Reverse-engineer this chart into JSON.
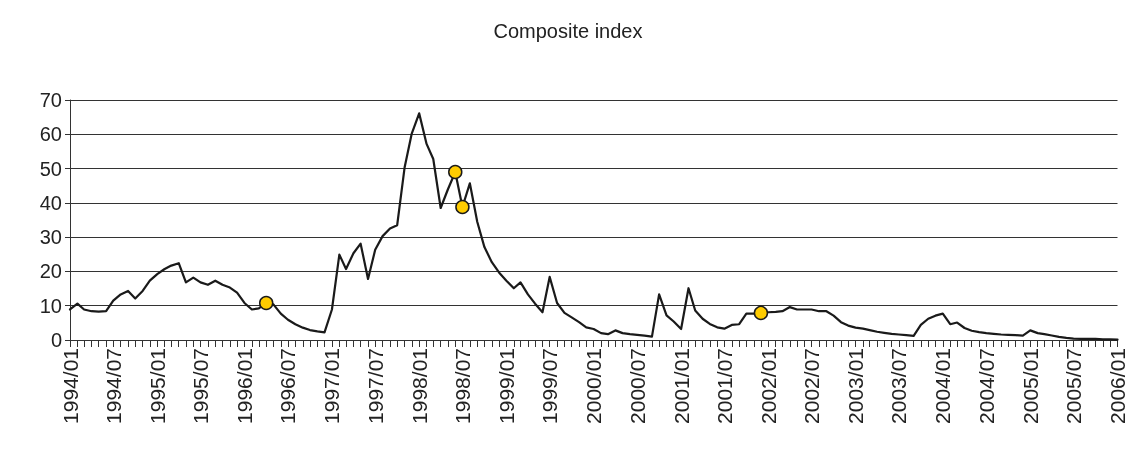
{
  "chart_data": {
    "type": "line",
    "title": "Composite index",
    "xlim": [
      "1994-01",
      "2006-01"
    ],
    "ylim": [
      0,
      70
    ],
    "yticks": [
      0,
      10,
      20,
      30,
      40,
      50,
      60,
      70
    ],
    "grid": "y",
    "marker": "none",
    "line_style": "solid",
    "xticks": [
      {
        "value": "1994-01",
        "label": "1994/01"
      },
      {
        "value": "1994-02",
        "label": null
      },
      {
        "value": "1994-03",
        "label": null
      },
      {
        "value": "1994-04",
        "label": null
      },
      {
        "value": "1994-05",
        "label": null
      },
      {
        "value": "1994-06",
        "label": null
      },
      {
        "value": "1994-07",
        "label": "1994/07"
      },
      {
        "value": "1994-08",
        "label": null
      },
      {
        "value": "1994-09",
        "label": null
      },
      {
        "value": "1994-10",
        "label": null
      },
      {
        "value": "1994-11",
        "label": null
      },
      {
        "value": "1994-12",
        "label": null
      },
      {
        "value": "1995-01",
        "label": "1995/01"
      },
      {
        "value": "1995-02",
        "label": null
      },
      {
        "value": "1995-03",
        "label": null
      },
      {
        "value": "1995-04",
        "label": null
      },
      {
        "value": "1995-05",
        "label": null
      },
      {
        "value": "1995-06",
        "label": null
      },
      {
        "value": "1995-07",
        "label": "1995/07"
      },
      {
        "value": "1995-08",
        "label": null
      },
      {
        "value": "1995-09",
        "label": null
      },
      {
        "value": "1995-10",
        "label": null
      },
      {
        "value": "1995-11",
        "label": null
      },
      {
        "value": "1995-12",
        "label": null
      },
      {
        "value": "1996-01",
        "label": "1996/01"
      },
      {
        "value": "1996-02",
        "label": null
      },
      {
        "value": "1996-03",
        "label": null
      },
      {
        "value": "1996-04",
        "label": null
      },
      {
        "value": "1996-05",
        "label": null
      },
      {
        "value": "1996-06",
        "label": null
      },
      {
        "value": "1996-07",
        "label": "1996/07"
      },
      {
        "value": "1996-08",
        "label": null
      },
      {
        "value": "1996-09",
        "label": null
      },
      {
        "value": "1996-10",
        "label": null
      },
      {
        "value": "1996-11",
        "label": null
      },
      {
        "value": "1996-12",
        "label": null
      },
      {
        "value": "1997-01",
        "label": "1997/01"
      },
      {
        "value": "1997-02",
        "label": null
      },
      {
        "value": "1997-03",
        "label": null
      },
      {
        "value": "1997-04",
        "label": null
      },
      {
        "value": "1997-05",
        "label": null
      },
      {
        "value": "1997-06",
        "label": null
      },
      {
        "value": "1997-07",
        "label": "1997/07"
      },
      {
        "value": "1997-08",
        "label": null
      },
      {
        "value": "1997-09",
        "label": null
      },
      {
        "value": "1997-10",
        "label": null
      },
      {
        "value": "1997-11",
        "label": null
      },
      {
        "value": "1997-12",
        "label": null
      },
      {
        "value": "1998-01",
        "label": "1998/01"
      },
      {
        "value": "1998-02",
        "label": null
      },
      {
        "value": "1998-03",
        "label": null
      },
      {
        "value": "1998-04",
        "label": null
      },
      {
        "value": "1998-05",
        "label": null
      },
      {
        "value": "1998-06",
        "label": null
      },
      {
        "value": "1998-07",
        "label": "1998/07"
      },
      {
        "value": "1998-08",
        "label": null
      },
      {
        "value": "1998-09",
        "label": null
      },
      {
        "value": "1998-10",
        "label": null
      },
      {
        "value": "1998-11",
        "label": null
      },
      {
        "value": "1998-12",
        "label": null
      },
      {
        "value": "1999-01",
        "label": "1999/01"
      },
      {
        "value": "1999-02",
        "label": null
      },
      {
        "value": "1999-03",
        "label": null
      },
      {
        "value": "1999-04",
        "label": null
      },
      {
        "value": "1999-05",
        "label": null
      },
      {
        "value": "1999-06",
        "label": null
      },
      {
        "value": "1999-07",
        "label": "1999/07"
      },
      {
        "value": "1999-08",
        "label": null
      },
      {
        "value": "1999-09",
        "label": null
      },
      {
        "value": "1999-10",
        "label": null
      },
      {
        "value": "1999-11",
        "label": null
      },
      {
        "value": "1999-12",
        "label": null
      },
      {
        "value": "2000-01",
        "label": "2000/01"
      },
      {
        "value": "2000-02",
        "label": null
      },
      {
        "value": "2000-03",
        "label": null
      },
      {
        "value": "2000-04",
        "label": null
      },
      {
        "value": "2000-05",
        "label": null
      },
      {
        "value": "2000-06",
        "label": null
      },
      {
        "value": "2000-07",
        "label": "2000/07"
      },
      {
        "value": "2000-08",
        "label": null
      },
      {
        "value": "2000-09",
        "label": null
      },
      {
        "value": "2000-10",
        "label": null
      },
      {
        "value": "2000-11",
        "label": null
      },
      {
        "value": "2000-12",
        "label": null
      },
      {
        "value": "2001-01",
        "label": "2001/01"
      },
      {
        "value": "2001-02",
        "label": null
      },
      {
        "value": "2001-03",
        "label": null
      },
      {
        "value": "2001-04",
        "label": null
      },
      {
        "value": "2001-05",
        "label": null
      },
      {
        "value": "2001-06",
        "label": null
      },
      {
        "value": "2001-07",
        "label": "2001/07"
      },
      {
        "value": "2001-08",
        "label": null
      },
      {
        "value": "2001-09",
        "label": null
      },
      {
        "value": "2001-10",
        "label": null
      },
      {
        "value": "2001-11",
        "label": null
      },
      {
        "value": "2001-12",
        "label": null
      },
      {
        "value": "2002-01",
        "label": "2002/01"
      },
      {
        "value": "2002-02",
        "label": null
      },
      {
        "value": "2002-03",
        "label": null
      },
      {
        "value": "2002-04",
        "label": null
      },
      {
        "value": "2002-05",
        "label": null
      },
      {
        "value": "2002-06",
        "label": null
      },
      {
        "value": "2002-07",
        "label": "2002/07"
      },
      {
        "value": "2002-08",
        "label": null
      },
      {
        "value": "2002-09",
        "label": null
      },
      {
        "value": "2002-10",
        "label": null
      },
      {
        "value": "2002-11",
        "label": null
      },
      {
        "value": "2002-12",
        "label": null
      },
      {
        "value": "2003-01",
        "label": "2003/01"
      },
      {
        "value": "2003-02",
        "label": null
      },
      {
        "value": "2003-03",
        "label": null
      },
      {
        "value": "2003-04",
        "label": null
      },
      {
        "value": "2003-05",
        "label": null
      },
      {
        "value": "2003-06",
        "label": null
      },
      {
        "value": "2003-07",
        "label": "2003/07"
      },
      {
        "value": "2003-08",
        "label": null
      },
      {
        "value": "2003-09",
        "label": null
      },
      {
        "value": "2003-10",
        "label": null
      },
      {
        "value": "2003-11",
        "label": null
      },
      {
        "value": "2003-12",
        "label": null
      },
      {
        "value": "2004-01",
        "label": "2004/01"
      },
      {
        "value": "2004-02",
        "label": null
      },
      {
        "value": "2004-03",
        "label": null
      },
      {
        "value": "2004-04",
        "label": null
      },
      {
        "value": "2004-05",
        "label": null
      },
      {
        "value": "2004-06",
        "label": null
      },
      {
        "value": "2004-07",
        "label": "2004/07"
      },
      {
        "value": "2004-08",
        "label": null
      },
      {
        "value": "2004-09",
        "label": null
      },
      {
        "value": "2004-10",
        "label": null
      },
      {
        "value": "2004-11",
        "label": null
      },
      {
        "value": "2004-12",
        "label": null
      },
      {
        "value": "2005-01",
        "label": "2005/01"
      },
      {
        "value": "2005-02",
        "label": null
      },
      {
        "value": "2005-03",
        "label": null
      },
      {
        "value": "2005-04",
        "label": null
      },
      {
        "value": "2005-05",
        "label": null
      },
      {
        "value": "2005-06",
        "label": null
      },
      {
        "value": "2005-07",
        "label": "2005/07"
      },
      {
        "value": "2005-08",
        "label": null
      },
      {
        "value": "2005-09",
        "label": null
      },
      {
        "value": "2005-10",
        "label": null
      },
      {
        "value": "2005-11",
        "label": null
      },
      {
        "value": "2005-12",
        "label": null
      },
      {
        "value": "2006-01",
        "label": "2006/01"
      }
    ],
    "series": [
      {
        "color": "#1a1a1a",
        "x": [
          "1994-01",
          "1994-02",
          "1994-03",
          "1994-04",
          "1994-05",
          "1994-06",
          "1994-07",
          "1994-08",
          "1994-09",
          "1994-10",
          "1994-11",
          "1994-12",
          "1995-01",
          "1995-02",
          "1995-03",
          "1995-04",
          "1995-05",
          "1995-06",
          "1995-07",
          "1995-08",
          "1995-09",
          "1995-10",
          "1995-11",
          "1995-12",
          "1996-01",
          "1996-02",
          "1996-03",
          "1996-04",
          "1996-05",
          "1996-06",
          "1996-07",
          "1996-08",
          "1996-09",
          "1996-10",
          "1996-11",
          "1996-12",
          "1997-01",
          "1997-02",
          "1997-03",
          "1997-04",
          "1997-05",
          "1997-06",
          "1997-07",
          "1997-08",
          "1997-09",
          "1997-10",
          "1997-11",
          "1997-12",
          "1998-01",
          "1998-02",
          "1998-03",
          "1998-04",
          "1998-05",
          "1998-06",
          "1998-07",
          "1998-08",
          "1998-09",
          "1998-10",
          "1998-11",
          "1998-12",
          "1999-01",
          "1999-02",
          "1999-03",
          "1999-04",
          "1999-05",
          "1999-06",
          "1999-07",
          "1999-08",
          "1999-09",
          "1999-10",
          "1999-11",
          "1999-12",
          "2000-01",
          "2000-02",
          "2000-03",
          "2000-04",
          "2000-05",
          "2000-06",
          "2000-07",
          "2000-08",
          "2000-09",
          "2000-10",
          "2000-11",
          "2000-12",
          "2001-01",
          "2001-02",
          "2001-03",
          "2001-04",
          "2001-05",
          "2001-06",
          "2001-07",
          "2001-08",
          "2001-09",
          "2001-10",
          "2001-11",
          "2001-12",
          "2002-01",
          "2002-02",
          "2002-03",
          "2002-04",
          "2002-05",
          "2002-06",
          "2002-07",
          "2002-08",
          "2002-09",
          "2002-10",
          "2002-11",
          "2002-12",
          "2003-01",
          "2003-02",
          "2003-03",
          "2003-04",
          "2003-05",
          "2003-06",
          "2003-07",
          "2003-08",
          "2003-09",
          "2003-10",
          "2003-11",
          "2003-12",
          "2004-01",
          "2004-02",
          "2004-03",
          "2004-04",
          "2004-05",
          "2004-06",
          "2004-07",
          "2004-08",
          "2004-09",
          "2004-10",
          "2004-11",
          "2004-12",
          "2005-01",
          "2005-02",
          "2005-03",
          "2005-04",
          "2005-05",
          "2005-06",
          "2005-07",
          "2005-08",
          "2005-09",
          "2005-10",
          "2005-11",
          "2005-12",
          "2006-01"
        ],
        "values": [
          8.9,
          10.6,
          8.9,
          8.4,
          8.3,
          8.4,
          11.5,
          13.3,
          14.3,
          12.1,
          14.3,
          17.3,
          19.2,
          20.7,
          21.7,
          22.4,
          16.8,
          18.2,
          16.8,
          16.1,
          17.3,
          16.1,
          15.3,
          13.8,
          10.8,
          8.9,
          9.2,
          10.8,
          10.4,
          7.7,
          5.9,
          4.6,
          3.6,
          2.9,
          2.5,
          2.2,
          8.9,
          24.9,
          20.7,
          25.3,
          28.1,
          17.8,
          26.3,
          30.3,
          32.5,
          33.5,
          50.3,
          60.2,
          66.1,
          57.2,
          52.8,
          38.5,
          43.9,
          49,
          38.8,
          45.7,
          34.5,
          27.1,
          22.7,
          19.7,
          17.3,
          15.1,
          16.8,
          13.3,
          10.6,
          8.1,
          18.4,
          10.8,
          7.9,
          6.6,
          5.2,
          3.7,
          3.2,
          2.0,
          1.7,
          2.8,
          2.0,
          1.7,
          1.5,
          1.3,
          1.0,
          13.3,
          7.2,
          5.4,
          3.2,
          15.1,
          8.6,
          6.2,
          4.7,
          3.7,
          3.3,
          4.4,
          4.6,
          7.7,
          7.7,
          7.9,
          8.1,
          8.2,
          8.4,
          9.6,
          8.9,
          8.9,
          8.9,
          8.4,
          8.4,
          7.1,
          5.2,
          4.2,
          3.6,
          3.3,
          2.9,
          2.4,
          2.1,
          1.8,
          1.6,
          1.4,
          1.2,
          4.4,
          6.2,
          7.1,
          7.7,
          4.6,
          5.1,
          3.5,
          2.7,
          2.3,
          2.0,
          1.8,
          1.6,
          1.5,
          1.4,
          1.3,
          2.8,
          2.0,
          1.7,
          1.3,
          0.9,
          0.6,
          0.4,
          0.3,
          0.3,
          0.3,
          0.2,
          0.2,
          0.1
        ]
      },
      {
        "type": "scatter",
        "color": "#ffcc00",
        "marker": "circle",
        "x": [
          "1996-04",
          "1998-06",
          "1998-07",
          "2001-12"
        ],
        "values": [
          10.8,
          49,
          38.8,
          7.9
        ]
      }
    ]
  }
}
